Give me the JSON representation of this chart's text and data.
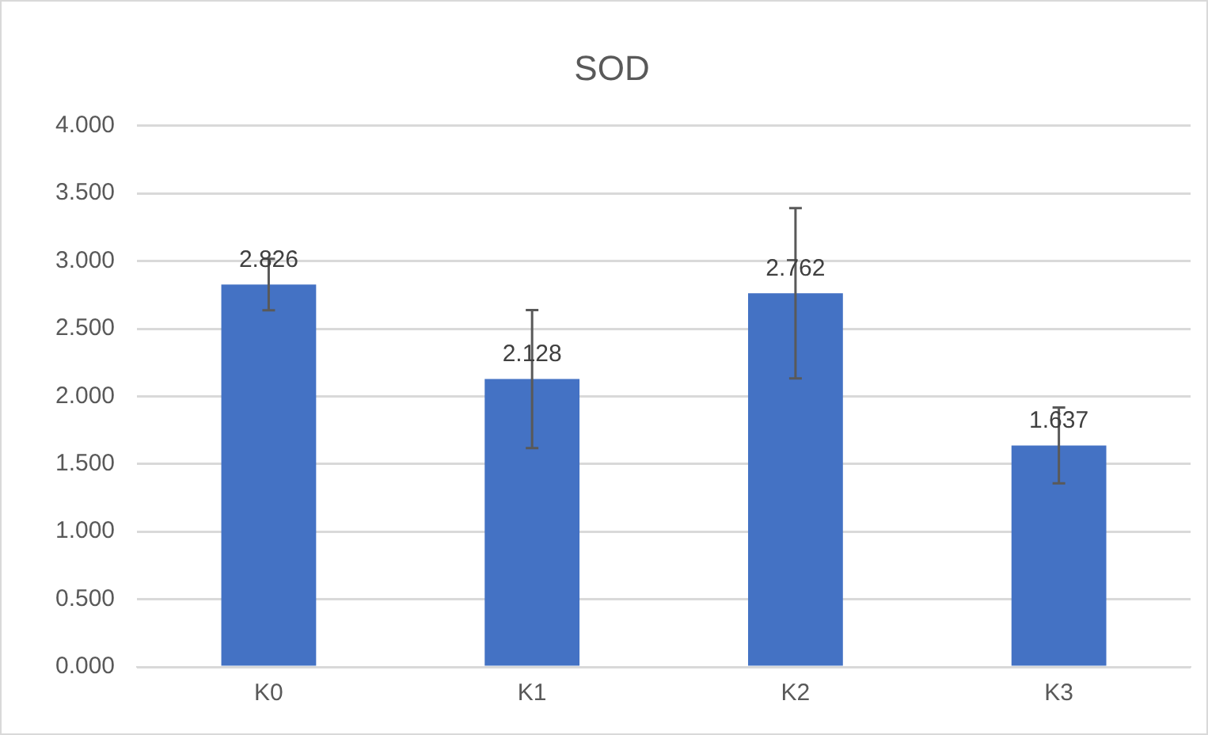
{
  "chart_data": {
    "type": "bar",
    "title": "SOD",
    "categories": [
      "K0",
      "K1",
      "K2",
      "K3"
    ],
    "series": [
      {
        "color": "#4472c4",
        "values": [
          2.826,
          2.128,
          2.762,
          1.637
        ],
        "errors": [
          0.19,
          0.51,
          0.63,
          0.28
        ]
      }
    ],
    "ylim": [
      0,
      4
    ],
    "yticks": [
      {
        "value": 0,
        "label": "0.000"
      },
      {
        "value": 0.5,
        "label": "0.500"
      },
      {
        "value": 1,
        "label": "1.000"
      },
      {
        "value": 1.5,
        "label": "1.500"
      },
      {
        "value": 2,
        "label": "2.000"
      },
      {
        "value": 2.5,
        "label": "2.500"
      },
      {
        "value": 3,
        "label": "3.000"
      },
      {
        "value": 3.5,
        "label": "3.500"
      },
      {
        "value": 4,
        "label": "4.000"
      }
    ],
    "grid": "y",
    "legend": false,
    "data_labels": true
  }
}
